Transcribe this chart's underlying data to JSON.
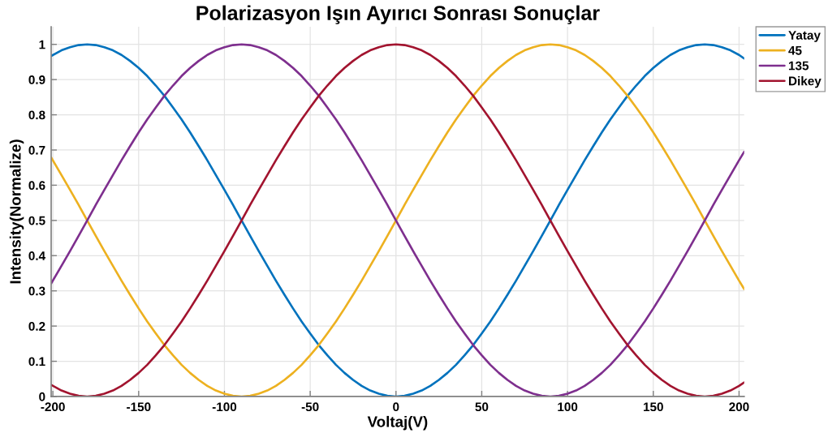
{
  "chart_data": {
    "type": "line",
    "title": "Polarizasyon Işın Ayırıcı Sonrası Sonuçlar",
    "xlabel": "Voltaj(V)",
    "ylabel": "Intensity(Normalize)",
    "x": [
      -201,
      -195,
      -190,
      -185,
      -180,
      -175,
      -170,
      -165,
      -160,
      -155,
      -150,
      -145,
      -140,
      -135,
      -130,
      -125,
      -120,
      -115,
      -110,
      -105,
      -100,
      -95,
      -90,
      -85,
      -80,
      -75,
      -70,
      -65,
      -60,
      -55,
      -50,
      -45,
      -40,
      -35,
      -30,
      -25,
      -20,
      -15,
      -10,
      -5,
      0,
      5,
      10,
      15,
      20,
      25,
      30,
      35,
      40,
      45,
      50,
      55,
      60,
      65,
      70,
      75,
      80,
      85,
      90,
      95,
      100,
      105,
      110,
      115,
      120,
      125,
      130,
      135,
      140,
      145,
      150,
      155,
      160,
      165,
      170,
      175,
      180,
      185,
      190,
      195,
      200,
      203
    ],
    "series": [
      {
        "name": "Yatay",
        "color": "#0072bd",
        "values": [
          0.967,
          0.983,
          0.992,
          0.998,
          1,
          0.998,
          0.992,
          0.983,
          0.97,
          0.953,
          0.933,
          0.91,
          0.883,
          0.854,
          0.821,
          0.787,
          0.75,
          0.711,
          0.671,
          0.629,
          0.587,
          0.544,
          0.5,
          0.456,
          0.413,
          0.371,
          0.329,
          0.289,
          0.25,
          0.213,
          0.179,
          0.146,
          0.117,
          0.09,
          0.067,
          0.047,
          0.03,
          0.017,
          0.008,
          0.002,
          0,
          0.002,
          0.008,
          0.017,
          0.03,
          0.047,
          0.067,
          0.09,
          0.117,
          0.146,
          0.179,
          0.213,
          0.25,
          0.289,
          0.329,
          0.371,
          0.413,
          0.456,
          0.5,
          0.544,
          0.587,
          0.629,
          0.671,
          0.711,
          0.75,
          0.787,
          0.821,
          0.854,
          0.883,
          0.91,
          0.933,
          0.953,
          0.97,
          0.983,
          0.992,
          0.998,
          1,
          0.998,
          0.992,
          0.983,
          0.97,
          0.96
        ]
      },
      {
        "name": "45",
        "color": "#edb120",
        "values": [
          0.679,
          0.629,
          0.587,
          0.544,
          0.5,
          0.456,
          0.413,
          0.371,
          0.329,
          0.289,
          0.25,
          0.213,
          0.179,
          0.146,
          0.117,
          0.09,
          0.067,
          0.047,
          0.03,
          0.017,
          0.008,
          0.002,
          0,
          0.002,
          0.008,
          0.017,
          0.03,
          0.047,
          0.067,
          0.09,
          0.117,
          0.146,
          0.179,
          0.213,
          0.25,
          0.289,
          0.329,
          0.371,
          0.413,
          0.456,
          0.5,
          0.544,
          0.587,
          0.629,
          0.671,
          0.711,
          0.75,
          0.787,
          0.821,
          0.854,
          0.883,
          0.91,
          0.933,
          0.953,
          0.97,
          0.983,
          0.992,
          0.998,
          1,
          0.998,
          0.992,
          0.983,
          0.97,
          0.953,
          0.933,
          0.91,
          0.883,
          0.854,
          0.821,
          0.787,
          0.75,
          0.711,
          0.671,
          0.629,
          0.587,
          0.544,
          0.5,
          0.456,
          0.413,
          0.371,
          0.329,
          0.305
        ]
      },
      {
        "name": "135",
        "color": "#7e2f8e",
        "values": [
          0.321,
          0.371,
          0.413,
          0.456,
          0.5,
          0.544,
          0.587,
          0.629,
          0.671,
          0.711,
          0.75,
          0.787,
          0.821,
          0.854,
          0.883,
          0.91,
          0.933,
          0.953,
          0.97,
          0.983,
          0.992,
          0.998,
          1,
          0.998,
          0.992,
          0.983,
          0.97,
          0.953,
          0.933,
          0.91,
          0.883,
          0.854,
          0.821,
          0.787,
          0.75,
          0.711,
          0.671,
          0.629,
          0.587,
          0.544,
          0.5,
          0.456,
          0.413,
          0.371,
          0.329,
          0.289,
          0.25,
          0.213,
          0.179,
          0.146,
          0.117,
          0.09,
          0.067,
          0.047,
          0.03,
          0.017,
          0.008,
          0.002,
          0,
          0.002,
          0.008,
          0.017,
          0.03,
          0.047,
          0.067,
          0.09,
          0.117,
          0.146,
          0.179,
          0.213,
          0.25,
          0.289,
          0.329,
          0.371,
          0.413,
          0.456,
          0.5,
          0.544,
          0.587,
          0.629,
          0.671,
          0.695
        ]
      },
      {
        "name": "Dikey",
        "color": "#a2142f",
        "values": [
          0.033,
          0.017,
          0.008,
          0.002,
          0,
          0.002,
          0.008,
          0.017,
          0.03,
          0.047,
          0.067,
          0.09,
          0.117,
          0.146,
          0.179,
          0.213,
          0.25,
          0.289,
          0.329,
          0.371,
          0.413,
          0.456,
          0.5,
          0.544,
          0.587,
          0.629,
          0.671,
          0.711,
          0.75,
          0.787,
          0.821,
          0.854,
          0.883,
          0.91,
          0.933,
          0.953,
          0.97,
          0.983,
          0.992,
          0.998,
          1,
          0.998,
          0.992,
          0.983,
          0.97,
          0.953,
          0.933,
          0.91,
          0.883,
          0.854,
          0.821,
          0.787,
          0.75,
          0.711,
          0.671,
          0.629,
          0.587,
          0.544,
          0.5,
          0.456,
          0.413,
          0.371,
          0.329,
          0.289,
          0.25,
          0.213,
          0.179,
          0.146,
          0.117,
          0.09,
          0.067,
          0.047,
          0.03,
          0.017,
          0.008,
          0.002,
          0,
          0.002,
          0.008,
          0.017,
          0.03,
          0.04
        ]
      }
    ],
    "xlim": [
      -201,
      203
    ],
    "ylim": [
      0,
      1.05
    ],
    "xticks": [
      -200,
      -150,
      -100,
      -50,
      0,
      50,
      100,
      150,
      200
    ],
    "yticks": [
      0,
      0.1,
      0.2,
      0.3,
      0.4,
      0.5,
      0.6,
      0.7,
      0.8,
      0.9,
      1
    ],
    "grid": true,
    "legend": "top right"
  }
}
